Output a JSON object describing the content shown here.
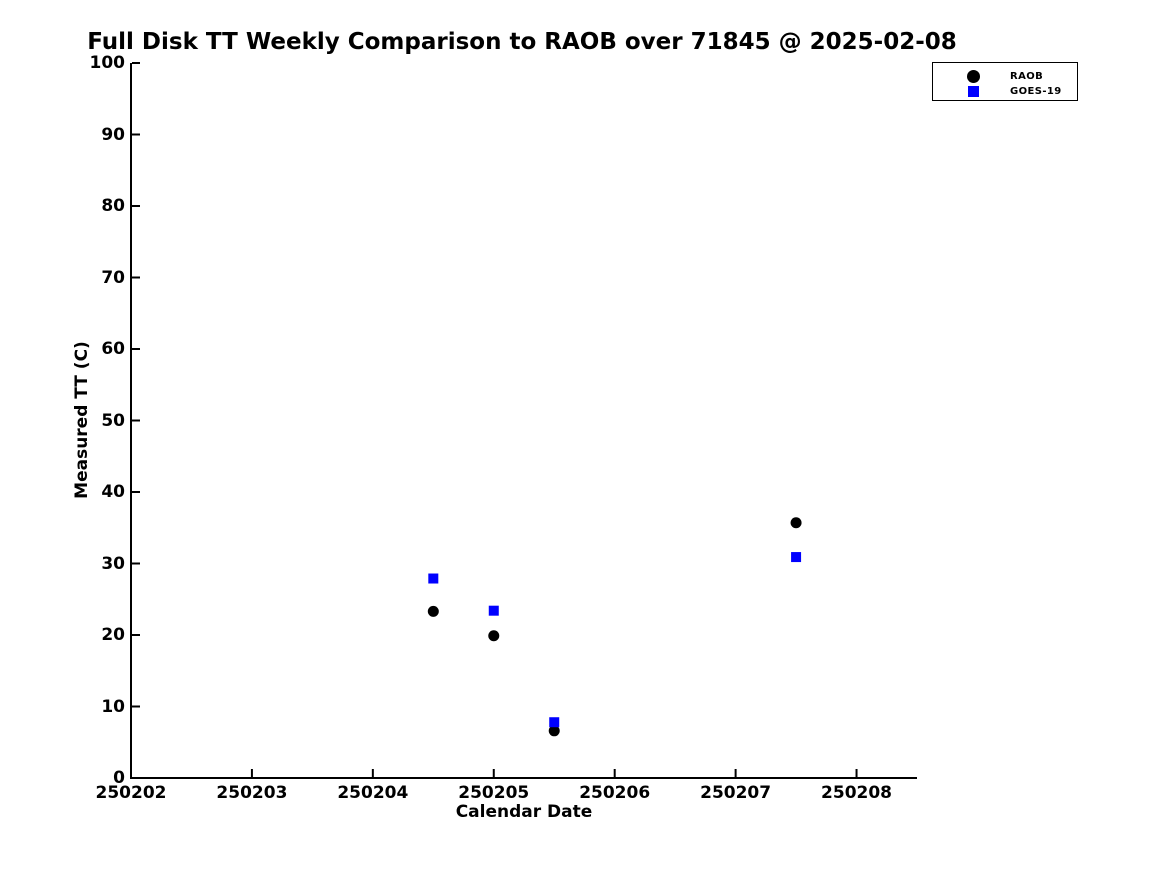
{
  "title": "Full Disk TT Weekly Comparison to RAOB over 71845 @ 2025-02-08",
  "axes": {
    "xlabel": "Calendar Date",
    "ylabel": "Measured TT (C)"
  },
  "legend": {
    "position": "top-right",
    "entries": [
      {
        "label": "RAOB",
        "marker": "circle",
        "color": "#000000"
      },
      {
        "label": "GOES-19",
        "marker": "square",
        "color": "#0000ff"
      }
    ]
  },
  "chart_data": {
    "type": "scatter",
    "title": "Full Disk TT Weekly Comparison to RAOB over 71845 @ 2025-02-08",
    "xlabel": "Calendar Date",
    "ylabel": "Measured TT (C)",
    "xlim": [
      250202,
      250208.5
    ],
    "ylim": [
      0,
      100
    ],
    "xticks": [
      250202,
      250203,
      250204,
      250205,
      250206,
      250207,
      250208
    ],
    "yticks": [
      0,
      10,
      20,
      30,
      40,
      50,
      60,
      70,
      80,
      90,
      100
    ],
    "grid": false,
    "legend_position": "top-right",
    "series": [
      {
        "name": "RAOB",
        "marker": "circle",
        "color": "#000000",
        "points": [
          [
            250204.5,
            23.3
          ],
          [
            250205.0,
            19.9
          ],
          [
            250205.5,
            6.6
          ],
          [
            250207.5,
            35.7
          ]
        ]
      },
      {
        "name": "GOES-19",
        "marker": "square",
        "color": "#0000ff",
        "points": [
          [
            250204.5,
            27.9
          ],
          [
            250205.0,
            23.4
          ],
          [
            250205.5,
            7.8
          ],
          [
            250207.5,
            30.9
          ]
        ]
      }
    ]
  }
}
